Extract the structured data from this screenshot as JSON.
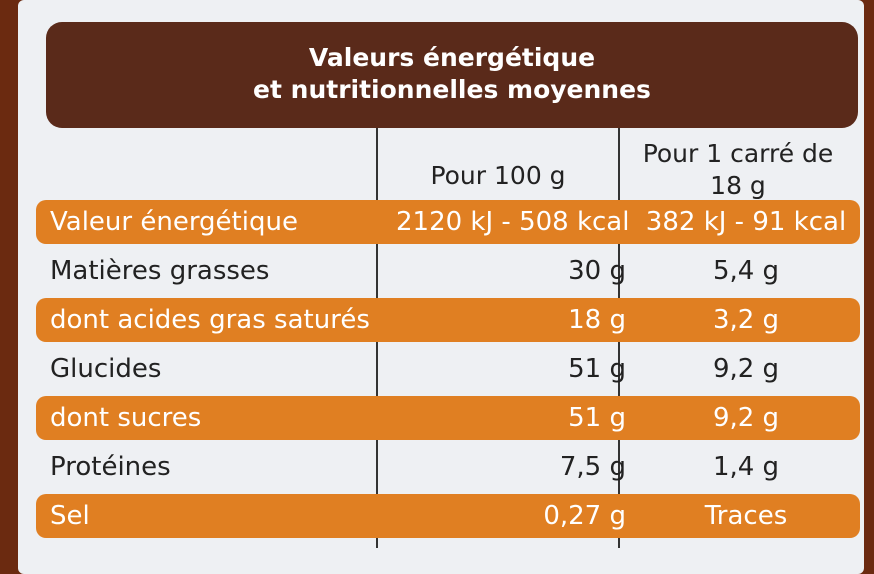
{
  "header": {
    "title_line1": "Valeurs énergétique",
    "title_line2": "et nutritionnelles moyennes"
  },
  "table": {
    "columns": [
      "Pour 100 g",
      "Pour 1 carré de 18 g"
    ],
    "rows": [
      [
        "Valeur énergétique",
        "2120 kJ - 508 kcal",
        "382 kJ - 91 kcal"
      ],
      [
        "Matières grasses",
        "30 g",
        "5,4 g"
      ],
      [
        "dont acides gras saturés",
        "18 g",
        "3,2 g"
      ],
      [
        "Glucides",
        "51 g",
        "9,2 g"
      ],
      [
        "dont sucres",
        "51 g",
        "9,2 g"
      ],
      [
        "Protéines",
        "7,5 g",
        "1,4 g"
      ],
      [
        "Sel",
        "0,27 g",
        "Traces"
      ]
    ]
  }
}
